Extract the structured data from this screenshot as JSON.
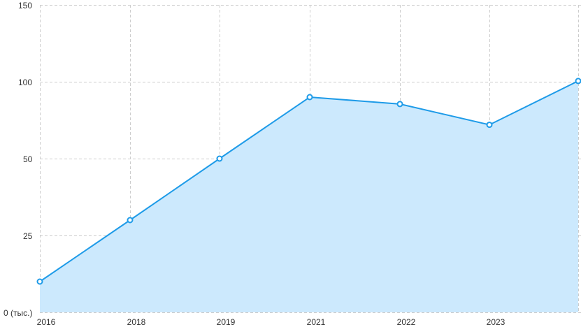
{
  "chart_data": {
    "type": "area",
    "title": "",
    "xlabel": "",
    "ylabel": "",
    "categories": [
      "2016",
      "2018",
      "2019",
      "2021",
      "2022",
      "2023",
      ""
    ],
    "series": [
      {
        "values": [
          10,
          30,
          50,
          90,
          85.5,
          72,
          100.5
        ]
      }
    ],
    "y_ticks": [
      "0 (тыс.)",
      "25",
      "50",
      "100",
      "150"
    ],
    "grid": true,
    "colors": {
      "line": "#1e9be8",
      "fill": "#cce9fd",
      "grid": "#cccccc",
      "marker_fill": "#ffffff"
    }
  }
}
